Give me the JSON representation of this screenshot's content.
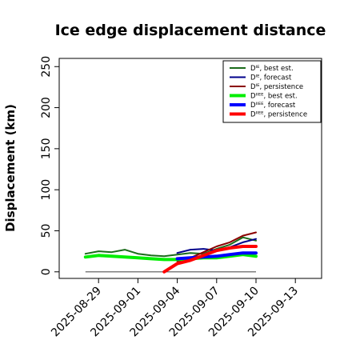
{
  "chart_data": {
    "type": "line",
    "title": "Ice edge displacement distance",
    "xlabel": "",
    "ylabel": "Displacement (km)",
    "ylim": [
      -8,
      260
    ],
    "yticks": [
      0,
      50,
      100,
      150,
      200,
      250
    ],
    "xlim": [
      "2025-08-26",
      "2025-09-15"
    ],
    "xticks": [
      "2025-08-29",
      "2025-09-01",
      "2025-09-04",
      "2025-09-07",
      "2025-09-10",
      "2025-09-13"
    ],
    "highlight_tick": {
      "date": "2025-09-04",
      "color": "#228b22"
    },
    "grid": false,
    "legend_position": "top-right",
    "zero_line": {
      "y": 0,
      "from": "2025-08-28",
      "to": "2025-09-10",
      "color": "#555555"
    },
    "series": [
      {
        "name": "Dᴵᴱ, best est.",
        "color": "#1a6b1a",
        "width": 2,
        "x": [
          "2025-08-28",
          "2025-08-29",
          "2025-08-30",
          "2025-08-31",
          "2025-09-01",
          "2025-09-02",
          "2025-09-03",
          "2025-09-04",
          "2025-09-05",
          "2025-09-06",
          "2025-09-07",
          "2025-09-08",
          "2025-09-09",
          "2025-09-10"
        ],
        "y": [
          22,
          25,
          24,
          27,
          22,
          20,
          19,
          21,
          23,
          22,
          28,
          33,
          42,
          38
        ]
      },
      {
        "name": "Dᴵᴱ, forecast",
        "color": "#00008b",
        "width": 2,
        "x": [
          "2025-09-04",
          "2025-09-05",
          "2025-09-06",
          "2025-09-07",
          "2025-09-08",
          "2025-09-09",
          "2025-09-10"
        ],
        "y": [
          23,
          27,
          28,
          26,
          30,
          36,
          40
        ]
      },
      {
        "name": "Dᴵᴱ, persistence",
        "color": "#8b0000",
        "width": 2,
        "x": [
          "2025-09-04",
          "2025-09-05",
          "2025-09-06",
          "2025-09-07",
          "2025-09-08",
          "2025-09-09",
          "2025-09-10"
        ],
        "y": [
          13,
          17,
          24,
          31,
          36,
          44,
          48
        ]
      },
      {
        "name": "Dᴵᴵᴱᴱ, best est.",
        "color": "#00ee00",
        "width": 4,
        "x": [
          "2025-08-28",
          "2025-08-29",
          "2025-08-30",
          "2025-08-31",
          "2025-09-01",
          "2025-09-02",
          "2025-09-03",
          "2025-09-04",
          "2025-09-05",
          "2025-09-06",
          "2025-09-07",
          "2025-09-08",
          "2025-09-09",
          "2025-09-10"
        ],
        "y": [
          18,
          20,
          19,
          18,
          17,
          16,
          15,
          15,
          16,
          17,
          17,
          19,
          21,
          19
        ]
      },
      {
        "name": "Dᴵᴵᴱᴱ, forecast",
        "color": "#0000ff",
        "width": 4,
        "x": [
          "2025-09-04",
          "2025-09-05",
          "2025-09-06",
          "2025-09-07",
          "2025-09-08",
          "2025-09-09",
          "2025-09-10"
        ],
        "y": [
          16,
          17,
          18,
          19,
          21,
          23,
          23
        ]
      },
      {
        "name": "Dᴵᴵᴱᴱ, persistence",
        "color": "#ff0000",
        "width": 4,
        "x": [
          "2025-09-03",
          "2025-09-04",
          "2025-09-05",
          "2025-09-06",
          "2025-09-07",
          "2025-09-08",
          "2025-09-09",
          "2025-09-10"
        ],
        "y": [
          0,
          10,
          14,
          20,
          26,
          29,
          31,
          31
        ]
      }
    ]
  }
}
